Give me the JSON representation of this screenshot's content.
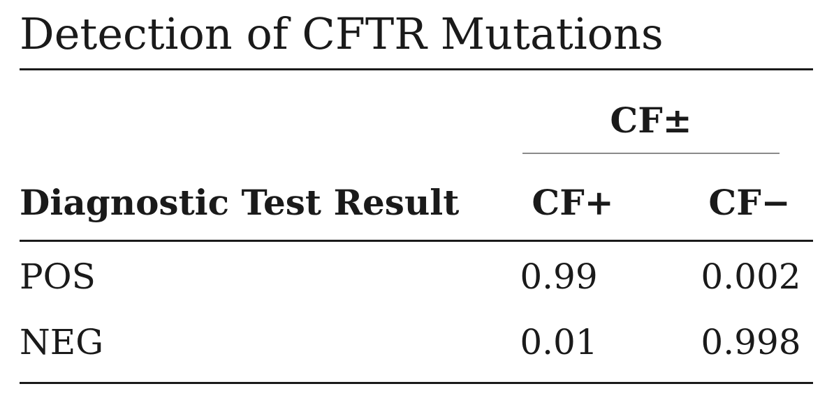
{
  "table": {
    "title": "Detection of CFTR Mutations",
    "spanner_label": "CF±",
    "header": {
      "row_label": "Diagnostic Test Result",
      "columns": [
        "CF+",
        "CF−"
      ]
    },
    "rows": [
      {
        "label": "POS",
        "values": [
          "0.99",
          "0.002"
        ]
      },
      {
        "label": "NEG",
        "values": [
          "0.01",
          "0.998"
        ]
      }
    ]
  }
}
